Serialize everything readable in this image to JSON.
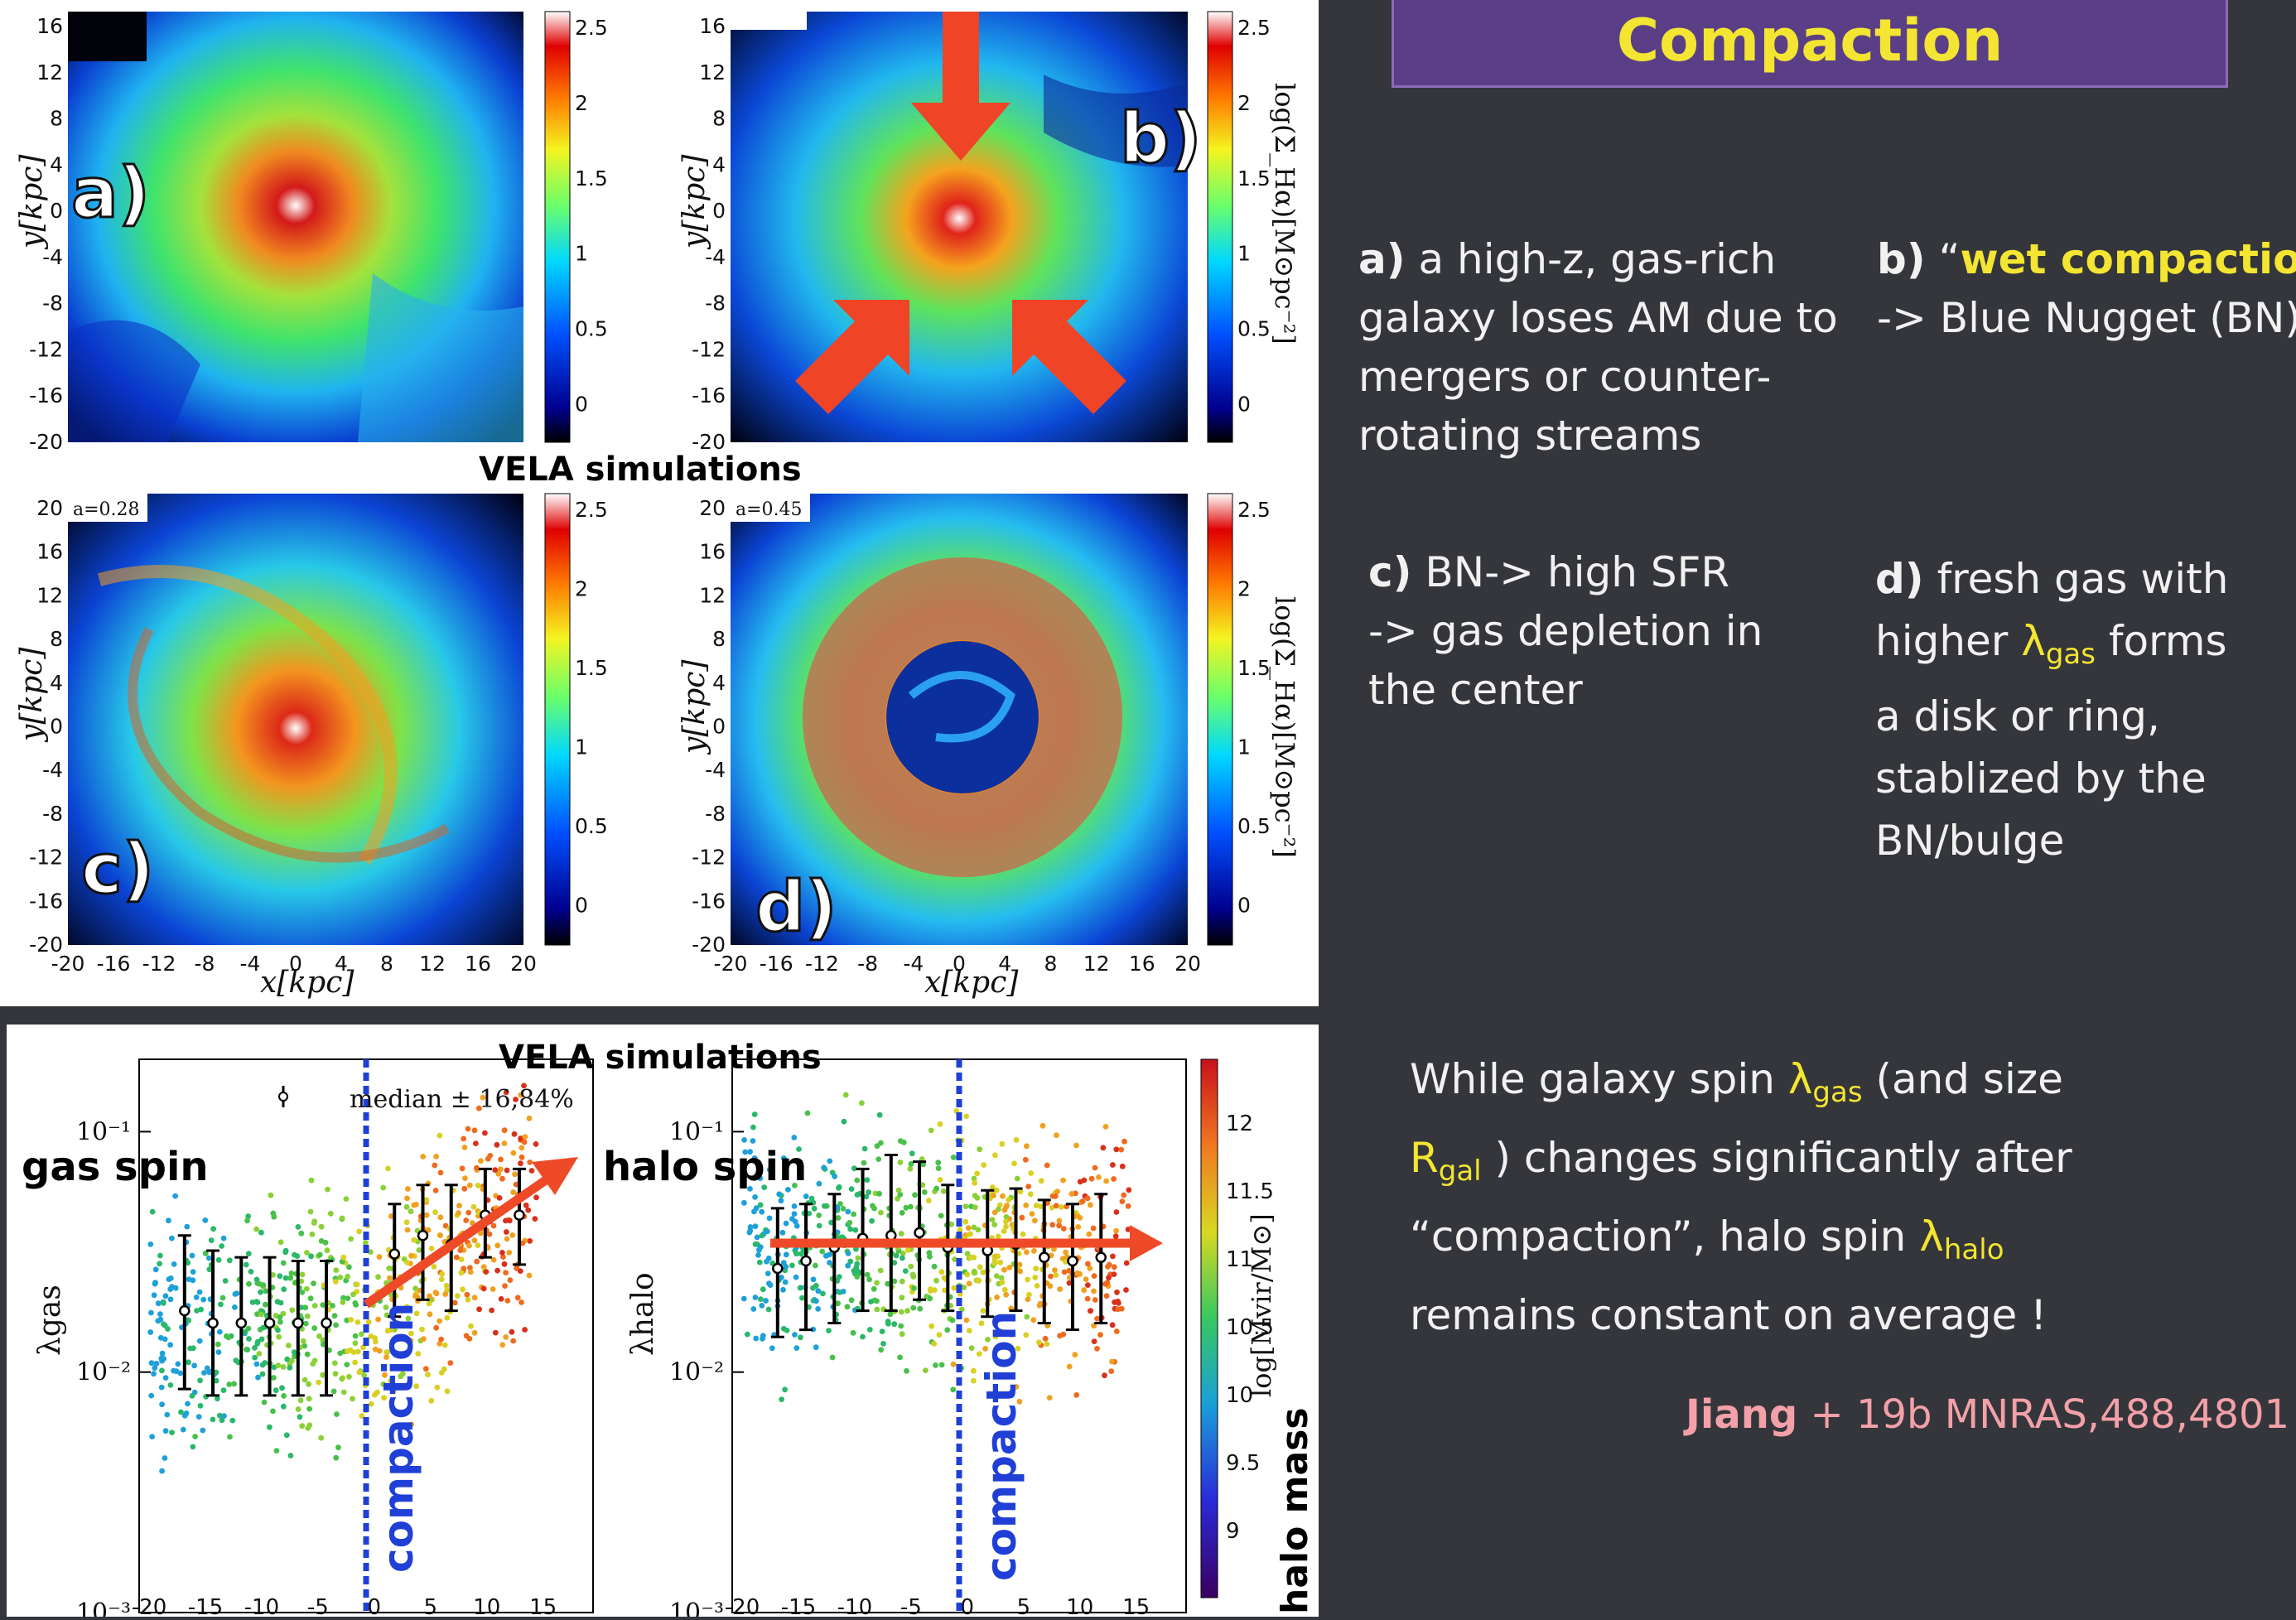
{
  "slide": {
    "title": "Compaction",
    "items": {
      "a": {
        "key": "a)",
        "text": "a high-z, gas-rich galaxy loses AM due to mergers or counter-rotating streams",
        "lines": [
          "a high-z, gas-rich",
          "galaxy loses AM due to",
          "mergers or counter-",
          "rotating streams"
        ]
      },
      "b": {
        "key": "b)",
        "quote_open": "“",
        "highlight": "wet compaction",
        "quote_close": "”",
        "line2": "-> Blue Nugget (BN)"
      },
      "c": {
        "key": "c)",
        "lines": [
          "BN-> high SFR",
          "-> gas depletion in",
          "the center"
        ]
      },
      "d": {
        "key": "d)",
        "line1": "fresh gas with",
        "line2_pre": "higher ",
        "lambda": "λ",
        "lambda_sub": "gas",
        "line2_post": " forms",
        "lines_rest": [
          "a disk or ring,",
          "stablized by the",
          "BN/bulge"
        ]
      }
    },
    "summary": {
      "l1_pre": "While galaxy spin ",
      "l1_lambda": "λ",
      "l1_sub": "gas",
      "l1_post": " (and size",
      "l2_R": "R",
      "l2_sub": "gal",
      "l2_post": " ) changes significantly after",
      "l3_pre": "“compaction”, halo spin ",
      "l3_lambda": "λ",
      "l3_sub": "halo",
      "l4": "remains constant on average !"
    },
    "citation": {
      "author": "Jiang",
      "rest": " + 19b MNRAS,488,4801"
    }
  },
  "figure_top": {
    "heading": "VELA simulations",
    "panels": [
      "a)",
      "b)",
      "c)",
      "d)"
    ],
    "scale_factor_c": "a=0.28",
    "scale_factor_d": "a=0.45",
    "y_ticks_top": [
      "16",
      "12",
      "8",
      "4",
      "0",
      "-4",
      "-8",
      "-12",
      "-16",
      "-20"
    ],
    "y_ticks_bottom": [
      "20",
      "16",
      "12",
      "8",
      "4",
      "0",
      "-4",
      "-8",
      "-12",
      "-16",
      "-20"
    ],
    "x_ticks": [
      "-20",
      "-16",
      "-12",
      "-8",
      "-4",
      "0",
      "4",
      "8",
      "12",
      "16",
      "20"
    ],
    "ylabel": "y[kpc]",
    "xlabel": "x[kpc]",
    "colorbar_ticks": [
      "2.5",
      "2",
      "1.5",
      "1",
      "0.5",
      "0"
    ],
    "colorbar_label": "log(Σ_Hα)[M⊙pc⁻²]"
  },
  "figure_bottom": {
    "heading": "VELA simulations",
    "legend": "median ± 16,84%",
    "left_panel_label": "gas spin",
    "right_panel_label": "halo spin",
    "left_ylabel": "λgas",
    "right_ylabel": "λhalo",
    "y_ticks": [
      "10⁻¹",
      "10⁻²",
      "10⁻³"
    ],
    "x_ticks": [
      "-20",
      "-15",
      "-10",
      "-5",
      "0",
      "5",
      "10",
      "15"
    ],
    "vertical_label": "compaction",
    "colorbar_ticks": [
      "12",
      "11.5",
      "11",
      "10.5",
      "10",
      "9.5",
      "9"
    ],
    "colorbar_label": "log[Mvir/M⊙]",
    "colorbar_side_label": "halo mass"
  },
  "chart_data": [
    {
      "type": "scatter",
      "title": "VELA simulations",
      "panel": "gas spin",
      "xlabel": "",
      "ylabel": "λgas",
      "yscale": "log",
      "xlim": [
        -20,
        20
      ],
      "ylim": [
        0.001,
        0.2
      ],
      "marker": "compaction at x = 0",
      "series": [
        {
          "name": "median ± 16,84%",
          "x": [
            -16,
            -13.5,
            -11,
            -8.5,
            -6,
            -3.5,
            2.5,
            5,
            7.5,
            10.5,
            13.5
          ],
          "values": [
            0.018,
            0.016,
            0.016,
            0.016,
            0.016,
            0.016,
            0.031,
            0.037,
            0.034,
            0.045,
            0.045
          ],
          "err_low": [
            0.0085,
            0.008,
            0.008,
            0.008,
            0.008,
            0.008,
            0.017,
            0.02,
            0.018,
            0.03,
            0.028
          ],
          "err_high": [
            0.037,
            0.032,
            0.03,
            0.03,
            0.029,
            0.029,
            0.05,
            0.06,
            0.06,
            0.07,
            0.07
          ]
        }
      ]
    },
    {
      "type": "scatter",
      "panel": "halo spin",
      "xlabel": "",
      "ylabel": "λhalo",
      "yscale": "log",
      "xlim": [
        -20,
        20
      ],
      "ylim": [
        0.001,
        0.2
      ],
      "marker": "compaction at x = 0",
      "series": [
        {
          "name": "median ± 16,84%",
          "x": [
            -16,
            -13.5,
            -11,
            -8.5,
            -6,
            -3.5,
            -1,
            2.5,
            5,
            7.5,
            10,
            12.5
          ],
          "values": [
            0.027,
            0.029,
            0.033,
            0.036,
            0.037,
            0.038,
            0.033,
            0.032,
            0.034,
            0.03,
            0.029,
            0.03
          ],
          "err_low": [
            0.014,
            0.015,
            0.016,
            0.018,
            0.018,
            0.02,
            0.018,
            0.017,
            0.018,
            0.016,
            0.015,
            0.016
          ],
          "err_high": [
            0.048,
            0.05,
            0.055,
            0.07,
            0.08,
            0.075,
            0.06,
            0.057,
            0.058,
            0.052,
            0.05,
            0.055
          ]
        }
      ]
    }
  ],
  "colors": {
    "accent_yellow": "#f3e531",
    "banner": "#5a3f86",
    "background": "#34363b",
    "citation": "#f3a0a8",
    "arrow": "#ee4a28",
    "compaction_line": "#1f3fd6"
  }
}
